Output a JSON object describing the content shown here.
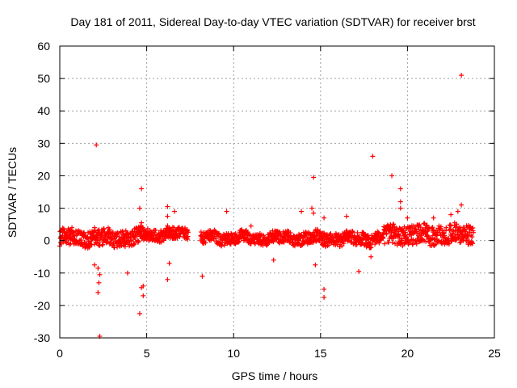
{
  "chart_data": {
    "type": "scatter",
    "title": "Day 181 of 2011, Sidereal Day-to-day VTEC variation (SDTVAR) for receiver brst",
    "xlabel": "GPS time / hours",
    "ylabel": "SDTVAR / TECUs",
    "xlim": [
      0,
      25
    ],
    "ylim": [
      -30,
      60
    ],
    "xticks": [
      0,
      5,
      10,
      15,
      20,
      25
    ],
    "yticks": [
      -30,
      -20,
      -10,
      0,
      10,
      20,
      30,
      40,
      50,
      60
    ],
    "grid": true,
    "marker": "+",
    "color": "#ff0000",
    "series": [
      {
        "name": "SDTVAR",
        "segments": [
          {
            "x_start": 0.0,
            "x_end": 4.6,
            "center": 0.8,
            "spread": 2.5
          },
          {
            "x_start": 4.6,
            "x_end": 7.4,
            "center": 2.0,
            "spread": 2.0
          },
          {
            "x_start": 8.1,
            "x_end": 13.6,
            "center": 0.8,
            "spread": 1.8
          },
          {
            "x_start": 13.6,
            "x_end": 18.6,
            "center": 0.6,
            "spread": 2.0
          },
          {
            "x_start": 18.6,
            "x_end": 23.8,
            "center": 1.8,
            "spread": 3.0
          }
        ],
        "outliers": [
          {
            "x": 2.1,
            "y": 29.5
          },
          {
            "x": 2.3,
            "y": -29.5
          },
          {
            "x": 2.2,
            "y": -16.0
          },
          {
            "x": 2.25,
            "y": -13.0
          },
          {
            "x": 2.3,
            "y": -10.5
          },
          {
            "x": 2.2,
            "y": -8.5
          },
          {
            "x": 2.0,
            "y": -7.5
          },
          {
            "x": 3.9,
            "y": -10.0
          },
          {
            "x": 4.6,
            "y": -22.5
          },
          {
            "x": 4.7,
            "y": -14.5
          },
          {
            "x": 4.8,
            "y": -14.0
          },
          {
            "x": 4.8,
            "y": -17.0
          },
          {
            "x": 4.7,
            "y": 16.0
          },
          {
            "x": 4.6,
            "y": 10.0
          },
          {
            "x": 4.7,
            "y": 5.5
          },
          {
            "x": 6.2,
            "y": 10.5
          },
          {
            "x": 6.2,
            "y": 7.5
          },
          {
            "x": 6.3,
            "y": -7.0
          },
          {
            "x": 6.2,
            "y": -12.0
          },
          {
            "x": 6.6,
            "y": 9.0
          },
          {
            "x": 8.2,
            "y": -11.0
          },
          {
            "x": 9.6,
            "y": 9.0
          },
          {
            "x": 11.0,
            "y": 4.5
          },
          {
            "x": 12.3,
            "y": -6.0
          },
          {
            "x": 14.6,
            "y": 19.5
          },
          {
            "x": 14.5,
            "y": 10.0
          },
          {
            "x": 14.6,
            "y": 8.5
          },
          {
            "x": 13.9,
            "y": 9.0
          },
          {
            "x": 14.7,
            "y": -7.5
          },
          {
            "x": 15.2,
            "y": -15.0
          },
          {
            "x": 15.2,
            "y": -17.5
          },
          {
            "x": 15.2,
            "y": 7.0
          },
          {
            "x": 16.5,
            "y": 7.5
          },
          {
            "x": 17.2,
            "y": -9.5
          },
          {
            "x": 18.0,
            "y": 26.0
          },
          {
            "x": 19.1,
            "y": 20.0
          },
          {
            "x": 19.6,
            "y": 16.0
          },
          {
            "x": 19.6,
            "y": 12.0
          },
          {
            "x": 19.6,
            "y": 10.0
          },
          {
            "x": 20.0,
            "y": 7.0
          },
          {
            "x": 23.1,
            "y": 51.0
          },
          {
            "x": 23.1,
            "y": 11.0
          },
          {
            "x": 22.9,
            "y": 9.0
          },
          {
            "x": 22.5,
            "y": 8.0
          },
          {
            "x": 0.7,
            "y": 4.0
          },
          {
            "x": 2.0,
            "y": 4.0
          },
          {
            "x": 17.9,
            "y": -5.0
          },
          {
            "x": 21.5,
            "y": 7.0
          }
        ]
      }
    ]
  }
}
